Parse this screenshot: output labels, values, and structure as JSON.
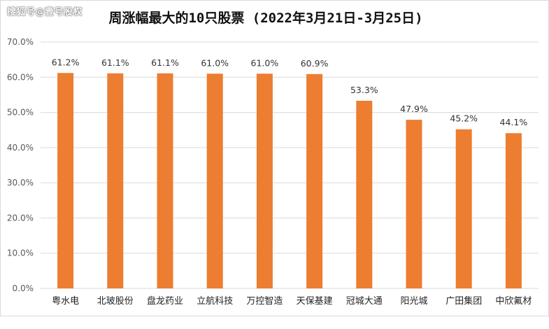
{
  "watermark": "搜狐号@壹号股权",
  "chart_data": {
    "type": "bar",
    "title": "周涨幅最大的10只股票 (2022年3月21日-3月25日)",
    "xlabel": "",
    "ylabel": "",
    "ylim": [
      0,
      70
    ],
    "yticks": [
      0,
      10,
      20,
      30,
      40,
      50,
      60,
      70
    ],
    "tick_suffix": "%",
    "grid": true,
    "legend": "none",
    "bar_color": "#ED7D31",
    "grid_color": "#D9D9D9",
    "categories": [
      "粤水电",
      "北玻股份",
      "盘龙药业",
      "立航科技",
      "万控智造",
      "天保基建",
      "冠城大通",
      "阳光城",
      "广田集团",
      "中欣氟材"
    ],
    "values": [
      61.2,
      61.1,
      61.1,
      61.0,
      61.0,
      60.9,
      53.3,
      47.9,
      45.2,
      44.1
    ],
    "value_labels": [
      "61.2%",
      "61.1%",
      "61.1%",
      "61.0%",
      "61.0%",
      "60.9%",
      "53.3%",
      "47.9%",
      "45.2%",
      "44.1%"
    ]
  }
}
